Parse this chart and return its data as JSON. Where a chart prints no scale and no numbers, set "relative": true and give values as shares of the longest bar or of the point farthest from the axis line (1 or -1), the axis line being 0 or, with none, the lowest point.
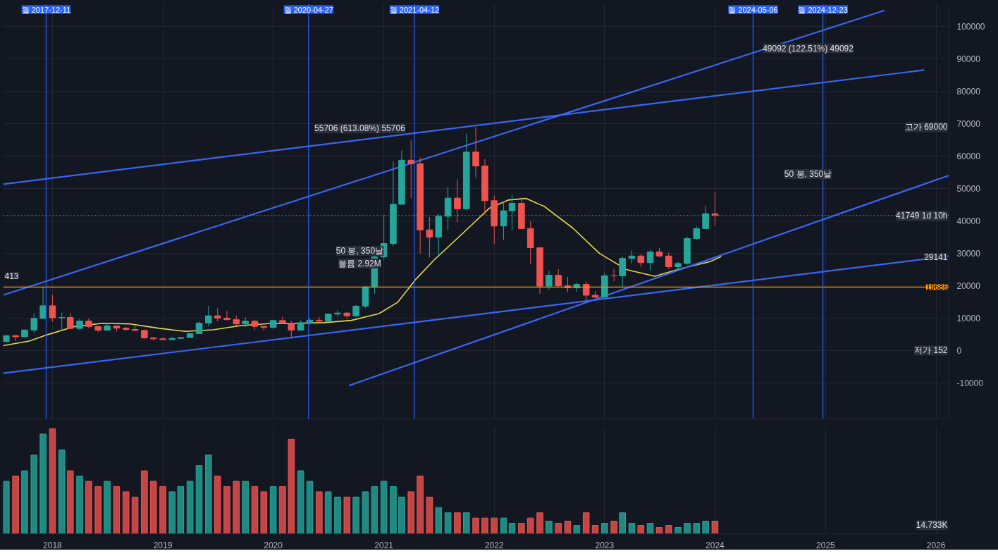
{
  "chart_data": [
    {
      "type": "candlestick",
      "xlim": [
        "2017-07-22",
        "2026-02-13"
      ],
      "ylim": [
        -21000,
        107000
      ],
      "xticks": [
        "2018",
        "2019",
        "2020",
        "2021",
        "2022",
        "2023",
        "2024",
        "2025",
        "2026"
      ],
      "yticks": [
        -10000,
        0,
        10000,
        20000,
        30000,
        40000,
        50000,
        60000,
        70000,
        80000,
        90000,
        100000
      ],
      "tick_labels": "y",
      "grid": true,
      "x": [
        "2017-08-01",
        "2017-09-01",
        "2017-10-01",
        "2017-11-01",
        "2017-12-01",
        "2018-01-01",
        "2018-02-01",
        "2018-03-01",
        "2018-04-01",
        "2018-05-01",
        "2018-06-01",
        "2018-07-01",
        "2018-08-01",
        "2018-09-01",
        "2018-10-01",
        "2018-11-01",
        "2018-12-01",
        "2019-01-01",
        "2019-02-01",
        "2019-03-01",
        "2019-04-01",
        "2019-05-01",
        "2019-06-01",
        "2019-07-01",
        "2019-08-01",
        "2019-09-01",
        "2019-10-01",
        "2019-11-01",
        "2019-12-01",
        "2020-01-01",
        "2020-02-01",
        "2020-03-01",
        "2020-04-01",
        "2020-05-01",
        "2020-06-01",
        "2020-07-01",
        "2020-08-01",
        "2020-09-01",
        "2020-10-01",
        "2020-11-01",
        "2020-12-01",
        "2021-01-01",
        "2021-02-01",
        "2021-03-01",
        "2021-04-01",
        "2021-05-01",
        "2021-06-01",
        "2021-07-01",
        "2021-08-01",
        "2021-09-01",
        "2021-10-01",
        "2021-11-01",
        "2021-12-01",
        "2022-01-01",
        "2022-02-01",
        "2022-03-01",
        "2022-04-01",
        "2022-05-01",
        "2022-06-01",
        "2022-07-01",
        "2022-08-01",
        "2022-09-01",
        "2022-10-01",
        "2022-11-01",
        "2022-12-01",
        "2023-01-01",
        "2023-02-01",
        "2023-03-01",
        "2023-04-01",
        "2023-05-01",
        "2023-06-01",
        "2023-07-01",
        "2023-08-01",
        "2023-09-01",
        "2023-10-01",
        "2023-11-01",
        "2023-12-01",
        "2024-01-01"
      ],
      "ohlc": [
        [
          2870,
          4760,
          2600,
          4700
        ],
        [
          4700,
          5000,
          2980,
          4340
        ],
        [
          4340,
          6470,
          4110,
          6450
        ],
        [
          6450,
          11500,
          5500,
          10000
        ],
        [
          10000,
          19800,
          10000,
          13900
        ],
        [
          13900,
          17200,
          9000,
          10200
        ],
        [
          10200,
          11800,
          6000,
          10300
        ],
        [
          10300,
          11700,
          6600,
          6900
        ],
        [
          6900,
          9800,
          6400,
          9200
        ],
        [
          9200,
          9990,
          7000,
          7500
        ],
        [
          7500,
          7800,
          5800,
          6400
        ],
        [
          6400,
          8500,
          6100,
          7700
        ],
        [
          7700,
          7750,
          5900,
          7000
        ],
        [
          7000,
          7400,
          6100,
          6600
        ],
        [
          6600,
          7700,
          6200,
          6300
        ],
        [
          6300,
          6600,
          3600,
          4000
        ],
        [
          4000,
          4300,
          3150,
          3700
        ],
        [
          3700,
          4100,
          3400,
          3450
        ],
        [
          3450,
          4200,
          3350,
          3850
        ],
        [
          3850,
          4150,
          3700,
          4100
        ],
        [
          4100,
          5600,
          4050,
          5300
        ],
        [
          5300,
          9000,
          5300,
          8550
        ],
        [
          8550,
          13900,
          7500,
          10800
        ],
        [
          10800,
          13200,
          9100,
          10100
        ],
        [
          10100,
          12300,
          9400,
          9600
        ],
        [
          9600,
          10900,
          7800,
          8300
        ],
        [
          8300,
          10400,
          7300,
          9150
        ],
        [
          9150,
          9500,
          6500,
          7550
        ],
        [
          7550,
          7750,
          6400,
          7200
        ],
        [
          7200,
          9600,
          6900,
          9350
        ],
        [
          9350,
          10500,
          8450,
          8550
        ],
        [
          8550,
          9200,
          3800,
          6400
        ],
        [
          6400,
          9450,
          6150,
          8650
        ],
        [
          8650,
          10100,
          8100,
          9450
        ],
        [
          9450,
          10400,
          8900,
          9150
        ],
        [
          9150,
          11450,
          8950,
          11350
        ],
        [
          11350,
          12500,
          10550,
          11650
        ],
        [
          11650,
          12100,
          9850,
          10800
        ],
        [
          10800,
          14100,
          10400,
          13800
        ],
        [
          13800,
          19900,
          13200,
          19700
        ],
        [
          19700,
          29300,
          17600,
          28990
        ],
        [
          28990,
          41950,
          28130,
          33100
        ],
        [
          33100,
          58350,
          32300,
          45200
        ],
        [
          45200,
          61800,
          44950,
          58800
        ],
        [
          58800,
          64850,
          47050,
          57700
        ],
        [
          57700,
          59600,
          30000,
          37300
        ],
        [
          37300,
          41300,
          28800,
          35050
        ],
        [
          35050,
          42300,
          29300,
          41500
        ],
        [
          41500,
          50500,
          37300,
          47100
        ],
        [
          47100,
          52900,
          39600,
          43800
        ],
        [
          43800,
          67000,
          43300,
          61300
        ],
        [
          61300,
          69000,
          53250,
          57000
        ],
        [
          57000,
          59100,
          42000,
          46300
        ],
        [
          46300,
          47900,
          32900,
          38500
        ],
        [
          38500,
          45800,
          34300,
          43200
        ],
        [
          43200,
          48200,
          37200,
          45500
        ],
        [
          45500,
          47400,
          37600,
          37700
        ],
        [
          37700,
          40000,
          26700,
          31800
        ],
        [
          31800,
          31900,
          17600,
          19950
        ],
        [
          19950,
          24650,
          18800,
          23300
        ],
        [
          23300,
          25200,
          19600,
          20050
        ],
        [
          20050,
          22800,
          18150,
          19450
        ],
        [
          19450,
          21100,
          18200,
          20500
        ],
        [
          20500,
          21450,
          15480,
          17150
        ],
        [
          17150,
          18400,
          16300,
          16550
        ],
        [
          16550,
          23950,
          16500,
          23150
        ],
        [
          23150,
          25250,
          21400,
          23130
        ],
        [
          23130,
          29200,
          19550,
          28500
        ],
        [
          28500,
          31000,
          26950,
          29250
        ],
        [
          29250,
          29800,
          25800,
          27200
        ],
        [
          27200,
          31400,
          24800,
          30500
        ],
        [
          30500,
          31800,
          28850,
          29250
        ],
        [
          29250,
          30250,
          25150,
          25950
        ],
        [
          25950,
          27500,
          24900,
          26950
        ],
        [
          26950,
          35200,
          26550,
          34650
        ],
        [
          34650,
          38450,
          34100,
          37700
        ],
        [
          37700,
          44700,
          37600,
          42300
        ],
        [
          42300,
          49000,
          38550,
          41749
        ]
      ],
      "colors": [
        "#26a69a",
        "#ef5350",
        "#26a69a",
        "#26a69a",
        "#26a69a",
        "#ef5350",
        "#26a69a",
        "#ef5350",
        "#26a69a",
        "#ef5350",
        "#ef5350",
        "#26a69a",
        "#ef5350",
        "#ef5350",
        "#ef5350",
        "#ef5350",
        "#ef5350",
        "#ef5350",
        "#26a69a",
        "#26a69a",
        "#26a69a",
        "#26a69a",
        "#26a69a",
        "#ef5350",
        "#ef5350",
        "#ef5350",
        "#26a69a",
        "#ef5350",
        "#ef5350",
        "#26a69a",
        "#ef5350",
        "#ef5350",
        "#26a69a",
        "#26a69a",
        "#ef5350",
        "#26a69a",
        "#26a69a",
        "#ef5350",
        "#26a69a",
        "#26a69a",
        "#26a69a",
        "#26a69a",
        "#26a69a",
        "#26a69a",
        "#ef5350",
        "#ef5350",
        "#ef5350",
        "#26a69a",
        "#26a69a",
        "#ef5350",
        "#26a69a",
        "#ef5350",
        "#ef5350",
        "#ef5350",
        "#26a69a",
        "#26a69a",
        "#ef5350",
        "#ef5350",
        "#ef5350",
        "#26a69a",
        "#ef5350",
        "#ef5350",
        "#26a69a",
        "#ef5350",
        "#ef5350",
        "#26a69a",
        "#ef5350",
        "#26a69a",
        "#26a69a",
        "#ef5350",
        "#26a69a",
        "#ef5350",
        "#ef5350",
        "#26a69a",
        "#26a69a",
        "#26a69a",
        "#26a69a",
        "#ef5350"
      ],
      "series": [
        {
          "type": "line",
          "color": "#e6d84a",
          "x": [
            "2017-07-22",
            "2017-10-16",
            "2017-12-16",
            "2018-03-16",
            "2018-06-16",
            "2018-09-16",
            "2018-12-16",
            "2019-03-16",
            "2019-06-16",
            "2019-09-16",
            "2019-12-16",
            "2020-03-16",
            "2020-06-16",
            "2020-09-16",
            "2020-12-16",
            "2021-02-16",
            "2021-04-16",
            "2021-06-16",
            "2021-09-16",
            "2021-12-16",
            "2022-02-16",
            "2022-04-16",
            "2022-06-16",
            "2022-09-16",
            "2022-12-16",
            "2023-03-16",
            "2023-06-16",
            "2023-09-16",
            "2023-12-16",
            "2024-01-22"
          ],
          "values": [
            1600,
            3000,
            5000,
            7500,
            8500,
            8300,
            7000,
            6000,
            6500,
            7800,
            8400,
            8500,
            8700,
            9400,
            11500,
            15000,
            22000,
            28000,
            36000,
            44000,
            46500,
            47000,
            44500,
            38000,
            30000,
            25000,
            23000,
            25500,
            27500,
            29100
          ]
        },
        {
          "type": "line",
          "color": "#3a66f0",
          "x": [
            "2017-07-22",
            "2025-11-23"
          ],
          "values": [
            51400,
            86600
          ]
        },
        {
          "type": "line",
          "color": "#3a66f0",
          "x": [
            "2017-07-22",
            "2026-02-13"
          ],
          "values": [
            -6900,
            29200
          ]
        },
        {
          "type": "line",
          "color": "#3a66f0",
          "x": [
            "2017-07-22",
            "2025-07-15"
          ],
          "values": [
            17200,
            105000
          ]
        },
        {
          "type": "line",
          "color": "#3a66f0",
          "x": [
            "2020-09-08",
            "2026-02-13"
          ],
          "values": [
            -10700,
            54100
          ]
        }
      ],
      "ref_lines": [
        {
          "axis": "y",
          "value": 19686,
          "label": "19686",
          "color": "#ff9800"
        },
        {
          "axis": "y",
          "value": 41749,
          "color": "#26a69a",
          "line_style": "dotted"
        },
        {
          "axis": "x",
          "value": "2017-12-11",
          "label": "월 2017-12-11",
          "color": "#2962ff"
        },
        {
          "axis": "x",
          "value": "2020-04-27",
          "label": "월 2020-04-27",
          "color": "#2962ff"
        },
        {
          "axis": "x",
          "value": "2021-04-12",
          "label": "월 2021-04-12",
          "color": "#2962ff"
        },
        {
          "axis": "x",
          "value": "2024-05-06",
          "label": "월 2024-05-06",
          "color": "#2962ff"
        },
        {
          "axis": "x",
          "value": "2024-12-23",
          "label": "월 2024-12-23",
          "color": "#2962ff"
        }
      ],
      "annotations": [
        "55706 (613.08%) 55706",
        "50 봉, 350날",
        "볼륨 2.92M",
        "49092 (122.51%) 49092",
        "50 봉, 350날",
        "413",
        "고가 69000",
        "41749 1d 10h",
        "29141",
        "저가 152"
      ]
    },
    {
      "type": "bar",
      "relative": true,
      "xlim": [
        "2017-07-22",
        "2026-02-13"
      ],
      "xticks": [
        "2018",
        "2019",
        "2020",
        "2021",
        "2022",
        "2023",
        "2024",
        "2025",
        "2026"
      ],
      "grid": "x",
      "x": [
        "2017-08-01",
        "2017-09-01",
        "2017-10-01",
        "2017-11-01",
        "2017-12-01",
        "2018-01-01",
        "2018-02-01",
        "2018-03-01",
        "2018-04-01",
        "2018-05-01",
        "2018-06-01",
        "2018-07-01",
        "2018-08-01",
        "2018-09-01",
        "2018-10-01",
        "2018-11-01",
        "2018-12-01",
        "2019-01-01",
        "2019-02-01",
        "2019-03-01",
        "2019-04-01",
        "2019-05-01",
        "2019-06-01",
        "2019-07-01",
        "2019-08-01",
        "2019-09-01",
        "2019-10-01",
        "2019-11-01",
        "2019-12-01",
        "2020-01-01",
        "2020-02-01",
        "2020-03-01",
        "2020-04-01",
        "2020-05-01",
        "2020-06-01",
        "2020-07-01",
        "2020-08-01",
        "2020-09-01",
        "2020-10-01",
        "2020-11-01",
        "2020-12-01",
        "2021-01-01",
        "2021-02-01",
        "2021-03-01",
        "2021-04-01",
        "2021-05-01",
        "2021-06-01",
        "2021-07-01",
        "2021-08-01",
        "2021-09-01",
        "2021-10-01",
        "2021-11-01",
        "2021-12-01",
        "2022-01-01",
        "2022-02-01",
        "2022-03-01",
        "2022-04-01",
        "2022-05-01",
        "2022-06-01",
        "2022-07-01",
        "2022-08-01",
        "2022-09-01",
        "2022-10-01",
        "2022-11-01",
        "2022-12-01",
        "2023-01-01",
        "2023-02-01",
        "2023-03-01",
        "2023-04-01",
        "2023-05-01",
        "2023-06-01",
        "2023-07-01",
        "2023-08-01",
        "2023-09-01",
        "2023-10-01",
        "2023-11-01",
        "2023-12-01",
        "2024-01-01"
      ],
      "values": [
        0.5,
        0.55,
        0.6,
        0.75,
        0.95,
        1.0,
        0.8,
        0.6,
        0.55,
        0.5,
        0.45,
        0.5,
        0.45,
        0.4,
        0.35,
        0.6,
        0.5,
        0.45,
        0.4,
        0.45,
        0.5,
        0.65,
        0.75,
        0.55,
        0.45,
        0.5,
        0.5,
        0.45,
        0.4,
        0.45,
        0.45,
        0.9,
        0.6,
        0.5,
        0.4,
        0.4,
        0.35,
        0.35,
        0.35,
        0.4,
        0.45,
        0.5,
        0.45,
        0.35,
        0.4,
        0.55,
        0.35,
        0.25,
        0.2,
        0.2,
        0.2,
        0.15,
        0.15,
        0.15,
        0.15,
        0.1,
        0.1,
        0.15,
        0.2,
        0.12,
        0.1,
        0.12,
        0.08,
        0.2,
        0.08,
        0.1,
        0.12,
        0.2,
        0.1,
        0.08,
        0.1,
        0.06,
        0.08,
        0.06,
        0.1,
        0.1,
        0.12,
        0.12
      ],
      "colors": [
        "#26a69a",
        "#ef5350",
        "#26a69a",
        "#26a69a",
        "#26a69a",
        "#ef5350",
        "#26a69a",
        "#ef5350",
        "#26a69a",
        "#ef5350",
        "#ef5350",
        "#26a69a",
        "#ef5350",
        "#ef5350",
        "#ef5350",
        "#ef5350",
        "#ef5350",
        "#ef5350",
        "#26a69a",
        "#26a69a",
        "#26a69a",
        "#26a69a",
        "#26a69a",
        "#ef5350",
        "#ef5350",
        "#ef5350",
        "#26a69a",
        "#ef5350",
        "#ef5350",
        "#26a69a",
        "#ef5350",
        "#ef5350",
        "#26a69a",
        "#26a69a",
        "#ef5350",
        "#26a69a",
        "#26a69a",
        "#ef5350",
        "#26a69a",
        "#26a69a",
        "#26a69a",
        "#26a69a",
        "#26a69a",
        "#26a69a",
        "#ef5350",
        "#ef5350",
        "#ef5350",
        "#26a69a",
        "#26a69a",
        "#ef5350",
        "#26a69a",
        "#ef5350",
        "#ef5350",
        "#ef5350",
        "#26a69a",
        "#26a69a",
        "#ef5350",
        "#ef5350",
        "#ef5350",
        "#26a69a",
        "#ef5350",
        "#ef5350",
        "#26a69a",
        "#ef5350",
        "#ef5350",
        "#26a69a",
        "#ef5350",
        "#26a69a",
        "#26a69a",
        "#ef5350",
        "#26a69a",
        "#ef5350",
        "#ef5350",
        "#26a69a",
        "#26a69a",
        "#26a69a",
        "#26a69a",
        "#ef5350"
      ],
      "annotations": [
        "14.733K"
      ]
    }
  ]
}
